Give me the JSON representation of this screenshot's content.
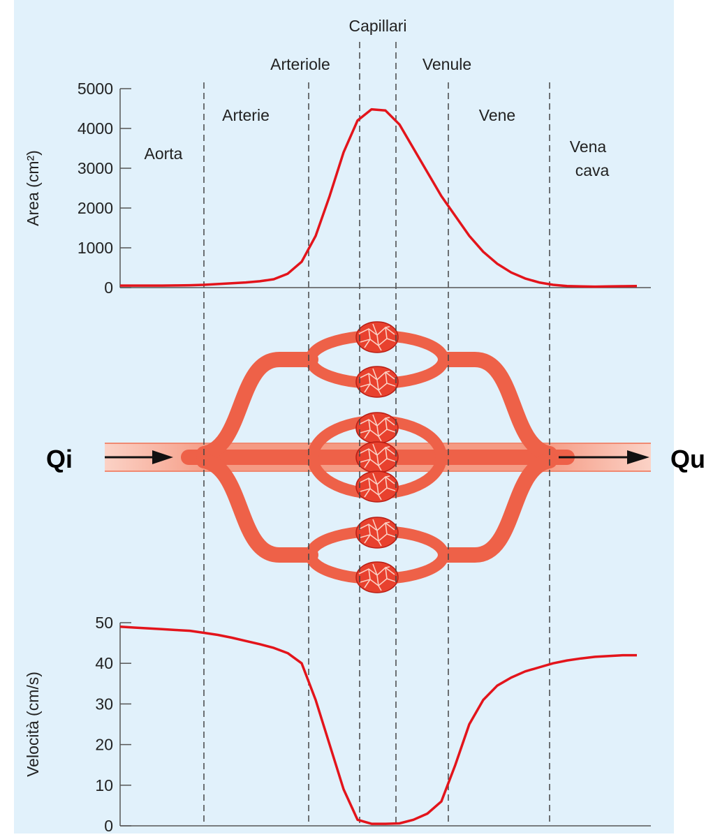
{
  "chart_data": [
    {
      "type": "line",
      "y_label": "Area (cm²)",
      "color": "#e3141b",
      "categories": [
        null,
        null,
        null,
        null,
        null,
        null,
        null,
        null,
        null,
        null,
        null,
        null,
        null,
        null,
        null,
        null,
        null,
        null,
        null,
        null,
        null,
        null,
        null,
        null,
        null,
        null,
        null,
        null,
        null,
        null,
        null,
        null,
        null,
        null,
        null,
        null,
        null,
        null,
        null
      ],
      "values": [
        50,
        50,
        50,
        50,
        55,
        60,
        70,
        90,
        110,
        130,
        160,
        210,
        350,
        650,
        1300,
        2300,
        3400,
        4200,
        4480,
        4450,
        4100,
        3500,
        2900,
        2300,
        1800,
        1300,
        900,
        600,
        380,
        230,
        130,
        70,
        40,
        30,
        25,
        30,
        35,
        40,
        null
      ],
      "ylim": [
        0,
        5000
      ],
      "yticks": [
        0,
        1000,
        2000,
        3000,
        4000,
        5000
      ]
    },
    {
      "type": "line",
      "y_label": "Velocità (cm/s)",
      "color": "#e3141b",
      "categories": [
        null,
        null,
        null,
        null,
        null,
        null,
        null,
        null,
        null,
        null,
        null,
        null,
        null,
        null,
        null,
        null,
        null,
        null,
        null,
        null,
        null,
        null,
        null,
        null,
        null,
        null,
        null,
        null,
        null,
        null,
        null,
        null,
        null,
        null,
        null,
        null,
        null,
        null,
        null
      ],
      "values": [
        49,
        48.8,
        48.6,
        48.4,
        48.2,
        48,
        47.5,
        47,
        46.3,
        45.5,
        44.7,
        43.8,
        42.5,
        40,
        31,
        20,
        9,
        1.5,
        0.5,
        0.5,
        0.6,
        1.5,
        3,
        6,
        15,
        25,
        31,
        34.5,
        36.5,
        38,
        39,
        40,
        40.7,
        41.2,
        41.6,
        41.8,
        42,
        42,
        null
      ],
      "ylim": [
        0,
        50
      ],
      "yticks": [
        0,
        10,
        20,
        30,
        40,
        50
      ]
    }
  ],
  "regions": {
    "capillari": "Capillari",
    "arteriole": "Arteriole",
    "venule": "Venule",
    "arterie": "Arterie",
    "vene": "Vene",
    "aorta": "Aorta",
    "vena_cava": [
      "Vena",
      "cava"
    ]
  },
  "flow": {
    "in": "Qi",
    "out": "Qu"
  }
}
